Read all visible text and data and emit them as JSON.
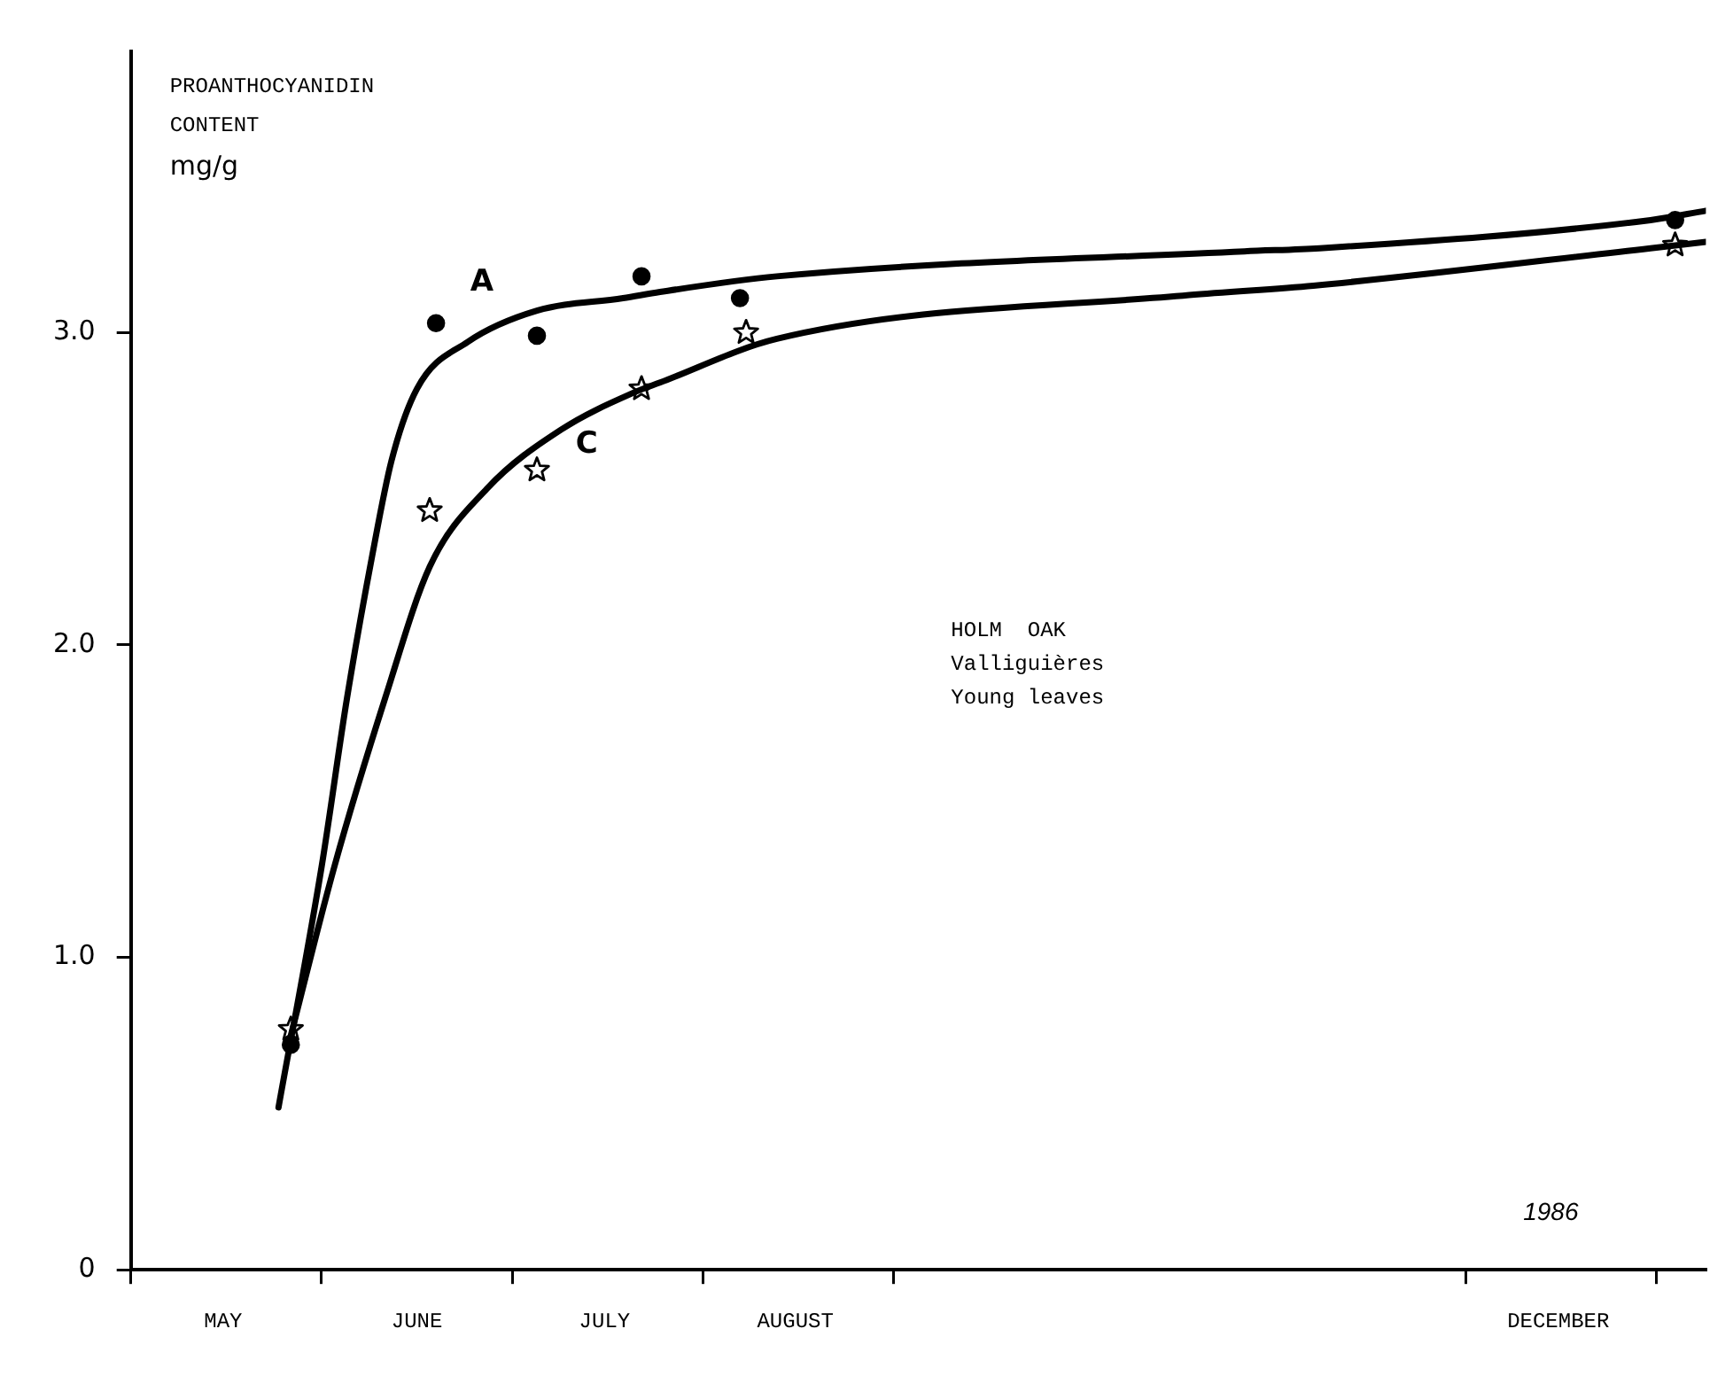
{
  "chart_data": {
    "type": "scatter",
    "ylabel": "PROANTHOCYANIDIN\nCONTENT\nmg/g",
    "xlim": [
      "1986-05-01",
      "1987-01-09"
    ],
    "xticks": [
      {
        "value": "1986-05-01",
        "label": null
      },
      {
        "value": "1986-05-16",
        "label": "MAY"
      },
      {
        "value": "1986-06-01",
        "label": null
      },
      {
        "value": "1986-06-16",
        "label": "JUNE"
      },
      {
        "value": "1986-07-01",
        "label": null
      },
      {
        "value": "1986-07-16",
        "label": "JULY"
      },
      {
        "value": "1986-08-01",
        "label": null
      },
      {
        "value": "1986-08-16",
        "label": "AUGUST"
      },
      {
        "value": "1986-09-01",
        "label": null
      },
      {
        "value": "1986-12-01",
        "label": null
      },
      {
        "value": "1986-12-16",
        "label": "DECEMBER"
      },
      {
        "value": "1987-01-01",
        "label": null
      }
    ],
    "ylim": [
      0,
      3.9
    ],
    "yticks": [
      0,
      {
        "value": 1,
        "label": "1.0"
      },
      {
        "value": 2,
        "label": "2.0"
      },
      {
        "value": 3,
        "label": "3.0"
      }
    ],
    "series": [
      {
        "type": "line",
        "marker": "none",
        "color": "#000000",
        "x": [
          "1986-05-25",
          "1986-06-01",
          "1986-06-05",
          "1986-06-09",
          "1986-06-12",
          "1986-06-16",
          "1986-06-24",
          "1986-07-05",
          "1986-07-19",
          "1986-07-25",
          "1986-08-13",
          "1986-10-27",
          "1986-11-08",
          "1986-12-31",
          "1987-01-09"
        ],
        "values": [
          0.52,
          1.29,
          1.83,
          2.29,
          2.59,
          2.82,
          2.97,
          3.07,
          3.11,
          3.13,
          3.18,
          3.26,
          3.27,
          3.36,
          3.39
        ]
      },
      {
        "type": "line",
        "marker": "none",
        "color": "#000000",
        "x": [
          "1986-05-27",
          "1986-06-03",
          "1986-06-11",
          "1986-06-18",
          "1986-06-27",
          "1986-07-09",
          "1986-07-21",
          "1986-07-25",
          "1986-08-13",
          "1986-10-18",
          "1986-11-07",
          "1986-12-31",
          "1987-01-09"
        ],
        "values": [
          0.75,
          1.29,
          1.83,
          2.25,
          2.5,
          2.69,
          2.81,
          2.84,
          2.98,
          3.12,
          3.15,
          3.27,
          3.29
        ]
      },
      {
        "marker": "circle",
        "color": "#000000",
        "x": [
          "1986-05-27",
          "1986-06-19",
          "1986-07-05",
          "1986-07-22",
          "1986-08-07",
          "1987-01-04"
        ],
        "values": [
          0.72,
          3.03,
          2.99,
          3.18,
          3.11,
          3.36
        ]
      },
      {
        "marker": "star",
        "color": "#000000",
        "x": [
          "1986-05-27",
          "1986-06-18",
          "1986-07-05",
          "1986-07-22",
          "1986-08-08",
          "1987-01-04"
        ],
        "values": [
          0.77,
          2.43,
          2.56,
          2.82,
          3.0,
          3.28
        ]
      }
    ],
    "annotations": [
      "A",
      "C",
      "HOLM  OAK\nValliguières\nYoung leaves",
      "1986"
    ]
  }
}
